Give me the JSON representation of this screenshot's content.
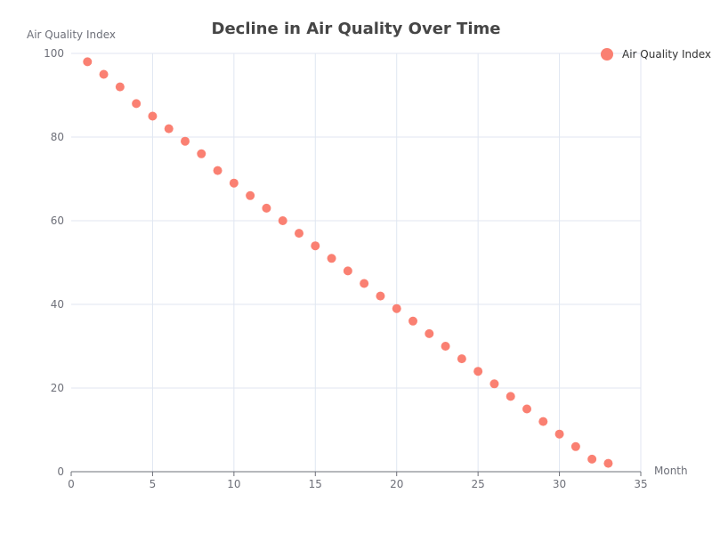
{
  "chart_data": {
    "type": "scatter",
    "title": "Decline in Air Quality Over Time",
    "xlabel": "Month",
    "ylabel": "Air Quality Index",
    "xlim": [
      0,
      35
    ],
    "ylim": [
      0,
      100
    ],
    "x_ticks": [
      0,
      5,
      10,
      15,
      20,
      25,
      30,
      35
    ],
    "y_ticks": [
      0,
      20,
      40,
      60,
      80,
      100
    ],
    "grid": true,
    "legend_position": "top-right",
    "series": [
      {
        "name": "Air Quality Index",
        "color": "#fa8072",
        "x": [
          1,
          2,
          3,
          4,
          5,
          6,
          7,
          8,
          9,
          10,
          11,
          12,
          13,
          14,
          15,
          16,
          17,
          18,
          19,
          20,
          21,
          22,
          23,
          24,
          25,
          26,
          27,
          28,
          29,
          30,
          31,
          32,
          33
        ],
        "y": [
          98,
          95,
          92,
          88,
          85,
          82,
          79,
          76,
          72,
          69,
          66,
          63,
          60,
          57,
          54,
          51,
          48,
          45,
          42,
          39,
          36,
          33,
          30,
          27,
          24,
          21,
          18,
          15,
          12,
          9,
          6,
          3,
          2
        ]
      }
    ]
  }
}
